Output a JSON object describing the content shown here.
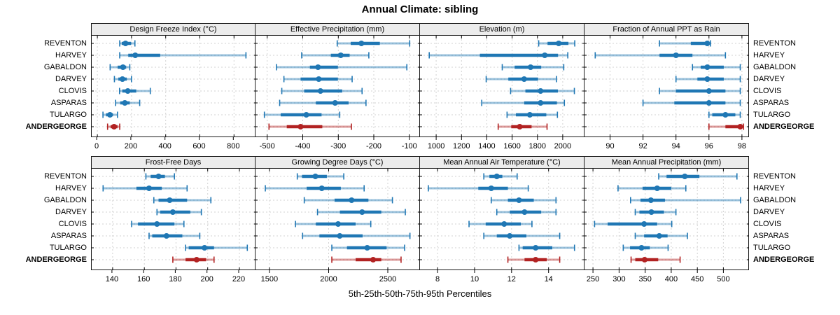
{
  "title": "Annual Climate: sibling",
  "caption": "5th-25th-50th-75th-95th Percentiles",
  "colors": {
    "site_normal": "#1f77b4",
    "site_highlight": "#b22222",
    "strip_bg": "#ececec",
    "grid": "#d2d2d2",
    "panel_border": "#1a1a1a"
  },
  "chart_data": {
    "type": "dotplot",
    "subtype": "percentile-range-plot",
    "percentiles": [
      "5th",
      "25th",
      "50th",
      "75th",
      "95th"
    ],
    "sites": [
      "REVENTON",
      "HARVEY",
      "GABALDON",
      "DARVEY",
      "CLOVIS",
      "ASPARAS",
      "TULARGO",
      "ANDERGEORGE"
    ],
    "highlight_site": "ANDERGEORGE",
    "legend_note": "values per site are [5th, 25th, 50th, 75th, 95th] percentiles",
    "panels": [
      {
        "title": "Design Freeze Index (°C)",
        "group": 0,
        "xlim": [
          -33,
          930
        ],
        "ticks": [
          0,
          200,
          400,
          600,
          800
        ],
        "values": [
          [
            131,
            143,
            165,
            198,
            220
          ],
          [
            131,
            181,
            222,
            368,
            870
          ],
          [
            75,
            119,
            150,
            169,
            190
          ],
          [
            100,
            123,
            147,
            172,
            200
          ],
          [
            130,
            146,
            178,
            228,
            310
          ],
          [
            107,
            134,
            161,
            190,
            248
          ],
          [
            33,
            51,
            74,
            91,
            118
          ],
          [
            60,
            78,
            98,
            118,
            131
          ]
        ]
      },
      {
        "title": "Effective Precipitation (mm)",
        "group": 0,
        "xlim": [
          -533,
          -70
        ],
        "ticks": [
          -500,
          -400,
          -300,
          -200,
          -100
        ],
        "values": [
          [
            -303,
            -265,
            -235,
            -183,
            -99
          ],
          [
            -403,
            -321,
            -293,
            -268,
            -214
          ],
          [
            -474,
            -380,
            -357,
            -301,
            -107
          ],
          [
            -453,
            -406,
            -355,
            -301,
            -261
          ],
          [
            -459,
            -396,
            -350,
            -289,
            -233
          ],
          [
            -465,
            -363,
            -309,
            -271,
            -222
          ],
          [
            -508,
            -462,
            -390,
            -347,
            -296
          ],
          [
            -495,
            -445,
            -406,
            -345,
            -263
          ]
        ]
      },
      {
        "title": "Elevation (m)",
        "group": 0,
        "xlim": [
          872,
          2172
        ],
        "ticks": [
          1000,
          1200,
          1400,
          1600,
          1800,
          2000
        ],
        "values": [
          [
            1810,
            1880,
            1968,
            2045,
            2095
          ],
          [
            945,
            1345,
            1858,
            1963,
            2040
          ],
          [
            1522,
            1620,
            1746,
            1830,
            2008
          ],
          [
            1395,
            1570,
            1695,
            1805,
            1950
          ],
          [
            1588,
            1705,
            1825,
            1962,
            2092
          ],
          [
            1360,
            1695,
            1825,
            1954,
            2013
          ],
          [
            1560,
            1630,
            1740,
            1870,
            1958
          ],
          [
            1490,
            1593,
            1660,
            1754,
            1876
          ]
        ]
      },
      {
        "title": "Fraction of Annual PPT as Rain",
        "group": 0,
        "xlim": [
          88.45,
          98.43
        ],
        "ticks": [
          90,
          92,
          94,
          96,
          98
        ],
        "values": [
          [
            93.0,
            94.9,
            95.9,
            96.0,
            96.1
          ],
          [
            89.1,
            93.0,
            94.0,
            95.0,
            97.0
          ],
          [
            95.0,
            95.5,
            95.9,
            96.9,
            97.9
          ],
          [
            94.0,
            95.3,
            95.9,
            96.9,
            97.9
          ],
          [
            93.0,
            94.0,
            96.0,
            97.0,
            97.9
          ],
          [
            92.0,
            93.9,
            96.0,
            97.0,
            97.9
          ],
          [
            96.0,
            96.2,
            97.0,
            97.6,
            97.9
          ],
          [
            96.0,
            97.0,
            97.9,
            98.0,
            98.1
          ]
        ]
      },
      {
        "title": "Frost-Free Days",
        "group": 1,
        "xlim": [
          126.8,
          230.6
        ],
        "ticks": [
          140,
          160,
          180,
          200,
          220
        ],
        "values": [
          [
            161,
            164,
            169,
            173,
            179
          ],
          [
            134,
            155,
            163,
            171,
            187
          ],
          [
            166,
            169,
            176,
            187,
            202
          ],
          [
            168,
            170,
            178,
            189,
            196
          ],
          [
            152,
            156,
            168,
            179,
            185
          ],
          [
            163,
            165,
            174,
            184,
            195
          ],
          [
            186,
            188,
            198,
            204,
            225
          ],
          [
            178,
            186,
            193,
            199,
            204
          ]
        ]
      },
      {
        "title": "Growing Degree Days (°C)",
        "group": 1,
        "xlim": [
          1382,
          2772
        ],
        "ticks": [
          1500,
          2000,
          2500
        ],
        "values": [
          [
            1735,
            1775,
            1888,
            1985,
            2128
          ],
          [
            1465,
            1814,
            1942,
            2103,
            2300
          ],
          [
            1794,
            2050,
            2194,
            2336,
            2539
          ],
          [
            1906,
            2095,
            2283,
            2445,
            2648
          ],
          [
            1720,
            1892,
            2080,
            2228,
            2356
          ],
          [
            1780,
            1922,
            2094,
            2287,
            2687
          ],
          [
            2027,
            2155,
            2326,
            2490,
            2642
          ],
          [
            2027,
            2228,
            2376,
            2445,
            2612
          ]
        ]
      },
      {
        "title": "Mean Annual Air Temperature (°C)",
        "group": 1,
        "xlim": [
          7.05,
          15.94
        ],
        "ticks": [
          8,
          10,
          12,
          14
        ],
        "values": [
          [
            10.5,
            10.8,
            11.2,
            11.5,
            12.3
          ],
          [
            7.5,
            10.2,
            10.9,
            11.8,
            12.9
          ],
          [
            10.9,
            11.8,
            12.4,
            13.2,
            14.4
          ],
          [
            11.2,
            11.9,
            12.7,
            13.6,
            14.4
          ],
          [
            9.7,
            10.6,
            11.6,
            12.5,
            13.1
          ],
          [
            10.5,
            11.2,
            11.9,
            12.8,
            14.6
          ],
          [
            12.4,
            12.6,
            13.3,
            14.2,
            15.4
          ],
          [
            11.8,
            12.7,
            13.3,
            13.9,
            14.6
          ]
        ]
      },
      {
        "title": "Mean Annual Precipitation (mm)",
        "group": 1,
        "xlim": [
          233.7,
          549.1
        ],
        "ticks": [
          250,
          300,
          350,
          400,
          450,
          500
        ],
        "values": [
          [
            376,
            391,
            426,
            454,
            526
          ],
          [
            298,
            345,
            373,
            400,
            428
          ],
          [
            322,
            341,
            361,
            388,
            533
          ],
          [
            331,
            339,
            362,
            386,
            409
          ],
          [
            253,
            278,
            348,
            373,
            401
          ],
          [
            331,
            348,
            377,
            393,
            431
          ],
          [
            308,
            321,
            343,
            359,
            394
          ],
          [
            323,
            331,
            349,
            375,
            417
          ]
        ]
      }
    ]
  }
}
